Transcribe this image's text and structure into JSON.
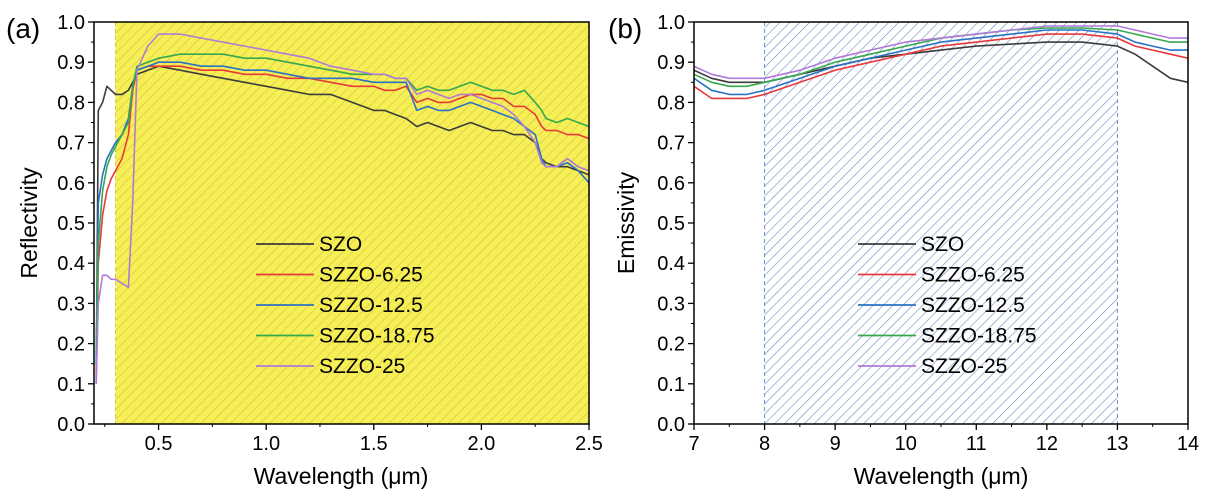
{
  "figure": {
    "series_names": [
      "SZO",
      "SZZO-6.25",
      "SZZO-12.5",
      "SZZO-18.75",
      "SZZO-25"
    ],
    "series_colors": [
      "#3c3c3c",
      "#e8393b",
      "#2a72c6",
      "#35a84e",
      "#b07ad8"
    ]
  },
  "chart_data": [
    {
      "panel_label": "(a)",
      "type": "line",
      "xlabel": "Wavelength (μm)",
      "ylabel": "Reflectivity",
      "xlim": [
        0.2,
        2.5
      ],
      "ylim": [
        0.0,
        1.0
      ],
      "xticks": [
        0.5,
        1.0,
        1.5,
        2.0,
        2.5
      ],
      "xtick_labels": [
        "0.5",
        "1.0",
        "1.5",
        "2.0",
        "2.5"
      ],
      "yticks": [
        0.0,
        0.1,
        0.2,
        0.3,
        0.4,
        0.5,
        0.6,
        0.7,
        0.8,
        0.9,
        1.0
      ],
      "ytick_labels": [
        "0.0",
        "0.1",
        "0.2",
        "0.3",
        "0.4",
        "0.5",
        "0.6",
        "0.7",
        "0.8",
        "0.9",
        "1.0"
      ],
      "shaded_region": {
        "x_range": [
          0.3,
          2.5
        ],
        "color": "#f5f055",
        "hatch_color": "#e2c24a"
      },
      "legend_position": "center",
      "series": [
        {
          "name": "SZO",
          "x": [
            0.21,
            0.22,
            0.24,
            0.26,
            0.28,
            0.3,
            0.33,
            0.36,
            0.38,
            0.4,
            0.45,
            0.5,
            0.6,
            0.7,
            0.8,
            0.9,
            1.0,
            1.1,
            1.2,
            1.3,
            1.4,
            1.5,
            1.55,
            1.6,
            1.65,
            1.7,
            1.75,
            1.8,
            1.85,
            1.9,
            1.95,
            2.0,
            2.05,
            2.1,
            2.15,
            2.2,
            2.25,
            2.28,
            2.3,
            2.35,
            2.4,
            2.45,
            2.5
          ],
          "y": [
            0.1,
            0.78,
            0.8,
            0.84,
            0.83,
            0.82,
            0.82,
            0.83,
            0.85,
            0.87,
            0.88,
            0.89,
            0.88,
            0.87,
            0.86,
            0.85,
            0.84,
            0.83,
            0.82,
            0.82,
            0.8,
            0.78,
            0.78,
            0.77,
            0.76,
            0.74,
            0.75,
            0.74,
            0.73,
            0.74,
            0.75,
            0.74,
            0.73,
            0.73,
            0.72,
            0.72,
            0.7,
            0.66,
            0.65,
            0.64,
            0.64,
            0.63,
            0.62
          ]
        },
        {
          "name": "SZZO-6.25",
          "x": [
            0.21,
            0.22,
            0.24,
            0.26,
            0.28,
            0.3,
            0.33,
            0.36,
            0.38,
            0.4,
            0.45,
            0.5,
            0.6,
            0.7,
            0.8,
            0.9,
            1.0,
            1.1,
            1.2,
            1.3,
            1.4,
            1.5,
            1.55,
            1.6,
            1.65,
            1.7,
            1.75,
            1.8,
            1.85,
            1.9,
            1.95,
            2.0,
            2.05,
            2.1,
            2.15,
            2.2,
            2.25,
            2.28,
            2.3,
            2.35,
            2.4,
            2.45,
            2.5
          ],
          "y": [
            0.12,
            0.4,
            0.52,
            0.58,
            0.61,
            0.63,
            0.66,
            0.72,
            0.83,
            0.88,
            0.89,
            0.89,
            0.89,
            0.88,
            0.88,
            0.87,
            0.87,
            0.86,
            0.86,
            0.85,
            0.84,
            0.84,
            0.83,
            0.83,
            0.84,
            0.8,
            0.81,
            0.8,
            0.8,
            0.81,
            0.82,
            0.82,
            0.81,
            0.81,
            0.79,
            0.79,
            0.77,
            0.74,
            0.73,
            0.73,
            0.72,
            0.72,
            0.71
          ]
        },
        {
          "name": "SZZO-12.5",
          "x": [
            0.21,
            0.22,
            0.24,
            0.26,
            0.28,
            0.3,
            0.33,
            0.36,
            0.38,
            0.4,
            0.45,
            0.5,
            0.6,
            0.7,
            0.8,
            0.9,
            1.0,
            1.1,
            1.2,
            1.3,
            1.4,
            1.5,
            1.55,
            1.6,
            1.65,
            1.7,
            1.75,
            1.8,
            1.85,
            1.9,
            1.95,
            2.0,
            2.05,
            2.1,
            2.15,
            2.2,
            2.25,
            2.28,
            2.3,
            2.35,
            2.4,
            2.45,
            2.5
          ],
          "y": [
            0.15,
            0.55,
            0.62,
            0.66,
            0.68,
            0.7,
            0.72,
            0.76,
            0.84,
            0.88,
            0.89,
            0.9,
            0.9,
            0.89,
            0.89,
            0.88,
            0.88,
            0.87,
            0.86,
            0.86,
            0.86,
            0.85,
            0.85,
            0.85,
            0.85,
            0.78,
            0.79,
            0.78,
            0.78,
            0.79,
            0.8,
            0.79,
            0.78,
            0.77,
            0.76,
            0.74,
            0.72,
            0.66,
            0.64,
            0.64,
            0.65,
            0.63,
            0.6
          ]
        },
        {
          "name": "SZZO-18.75",
          "x": [
            0.21,
            0.22,
            0.24,
            0.26,
            0.28,
            0.3,
            0.33,
            0.36,
            0.38,
            0.4,
            0.45,
            0.5,
            0.6,
            0.7,
            0.8,
            0.9,
            1.0,
            1.1,
            1.2,
            1.3,
            1.4,
            1.5,
            1.55,
            1.6,
            1.65,
            1.7,
            1.75,
            1.8,
            1.85,
            1.9,
            1.95,
            2.0,
            2.05,
            2.1,
            2.15,
            2.2,
            2.25,
            2.28,
            2.3,
            2.35,
            2.4,
            2.45,
            2.5
          ],
          "y": [
            0.18,
            0.45,
            0.58,
            0.64,
            0.67,
            0.69,
            0.72,
            0.75,
            0.84,
            0.89,
            0.9,
            0.91,
            0.92,
            0.92,
            0.92,
            0.91,
            0.91,
            0.9,
            0.89,
            0.88,
            0.87,
            0.87,
            0.87,
            0.86,
            0.86,
            0.83,
            0.84,
            0.83,
            0.83,
            0.84,
            0.85,
            0.84,
            0.83,
            0.83,
            0.82,
            0.83,
            0.8,
            0.78,
            0.76,
            0.75,
            0.76,
            0.75,
            0.74
          ]
        },
        {
          "name": "SZZO-25",
          "x": [
            0.21,
            0.22,
            0.24,
            0.26,
            0.28,
            0.3,
            0.33,
            0.36,
            0.38,
            0.4,
            0.45,
            0.5,
            0.6,
            0.7,
            0.8,
            0.9,
            1.0,
            1.1,
            1.2,
            1.3,
            1.4,
            1.5,
            1.55,
            1.6,
            1.65,
            1.7,
            1.75,
            1.8,
            1.85,
            1.9,
            1.95,
            2.0,
            2.05,
            2.1,
            2.15,
            2.2,
            2.25,
            2.28,
            2.3,
            2.35,
            2.4,
            2.45,
            2.5
          ],
          "y": [
            0.1,
            0.3,
            0.37,
            0.37,
            0.36,
            0.36,
            0.35,
            0.34,
            0.55,
            0.88,
            0.94,
            0.97,
            0.97,
            0.96,
            0.95,
            0.94,
            0.93,
            0.92,
            0.91,
            0.89,
            0.88,
            0.87,
            0.87,
            0.86,
            0.86,
            0.82,
            0.83,
            0.82,
            0.81,
            0.82,
            0.82,
            0.81,
            0.8,
            0.79,
            0.77,
            0.74,
            0.7,
            0.65,
            0.64,
            0.64,
            0.66,
            0.64,
            0.63
          ]
        }
      ]
    },
    {
      "panel_label": "(b)",
      "type": "line",
      "xlabel": "Wavelength (μm)",
      "ylabel": "Emissivity",
      "xlim": [
        7,
        14
      ],
      "ylim": [
        0.0,
        1.0
      ],
      "xticks": [
        7,
        8,
        9,
        10,
        11,
        12,
        13,
        14
      ],
      "xtick_labels": [
        "7",
        "8",
        "9",
        "10",
        "11",
        "12",
        "13",
        "14"
      ],
      "yticks": [
        0.0,
        0.1,
        0.2,
        0.3,
        0.4,
        0.5,
        0.6,
        0.7,
        0.8,
        0.9,
        1.0
      ],
      "ytick_labels": [
        "0.0",
        "0.1",
        "0.2",
        "0.3",
        "0.4",
        "0.5",
        "0.6",
        "0.7",
        "0.8",
        "0.9",
        "1.0"
      ],
      "shaded_region": {
        "x_range": [
          8,
          13
        ],
        "color": "#c6d6ee",
        "hatch_color": "#6a8fc4"
      },
      "legend_position": "center",
      "series": [
        {
          "name": "SZO",
          "x": [
            7.0,
            7.25,
            7.5,
            7.75,
            8.0,
            8.5,
            9.0,
            9.5,
            10.0,
            10.5,
            11.0,
            11.5,
            12.0,
            12.5,
            13.0,
            13.25,
            13.5,
            13.75,
            14.0
          ],
          "y": [
            0.88,
            0.86,
            0.85,
            0.85,
            0.85,
            0.87,
            0.89,
            0.91,
            0.92,
            0.93,
            0.94,
            0.945,
            0.95,
            0.95,
            0.94,
            0.92,
            0.89,
            0.86,
            0.85
          ]
        },
        {
          "name": "SZZO-6.25",
          "x": [
            7.0,
            7.25,
            7.5,
            7.75,
            8.0,
            8.5,
            9.0,
            9.5,
            10.0,
            10.5,
            11.0,
            11.5,
            12.0,
            12.5,
            13.0,
            13.25,
            13.5,
            13.75,
            14.0
          ],
          "y": [
            0.84,
            0.81,
            0.81,
            0.81,
            0.82,
            0.85,
            0.88,
            0.9,
            0.92,
            0.94,
            0.95,
            0.96,
            0.97,
            0.97,
            0.96,
            0.94,
            0.93,
            0.92,
            0.91
          ]
        },
        {
          "name": "SZZO-12.5",
          "x": [
            7.0,
            7.25,
            7.5,
            7.75,
            8.0,
            8.5,
            9.0,
            9.5,
            10.0,
            10.5,
            11.0,
            11.5,
            12.0,
            12.5,
            13.0,
            13.25,
            13.5,
            13.75,
            14.0
          ],
          "y": [
            0.86,
            0.83,
            0.82,
            0.82,
            0.83,
            0.86,
            0.89,
            0.91,
            0.93,
            0.95,
            0.96,
            0.97,
            0.98,
            0.98,
            0.97,
            0.95,
            0.94,
            0.93,
            0.93
          ]
        },
        {
          "name": "SZZO-18.75",
          "x": [
            7.0,
            7.25,
            7.5,
            7.75,
            8.0,
            8.5,
            9.0,
            9.5,
            10.0,
            10.5,
            11.0,
            11.5,
            12.0,
            12.5,
            13.0,
            13.25,
            13.5,
            13.75,
            14.0
          ],
          "y": [
            0.87,
            0.85,
            0.84,
            0.84,
            0.85,
            0.87,
            0.9,
            0.92,
            0.94,
            0.96,
            0.97,
            0.98,
            0.985,
            0.985,
            0.98,
            0.97,
            0.96,
            0.95,
            0.95
          ]
        },
        {
          "name": "SZZO-25",
          "x": [
            7.0,
            7.25,
            7.5,
            7.75,
            8.0,
            8.5,
            9.0,
            9.5,
            10.0,
            10.5,
            11.0,
            11.5,
            12.0,
            12.5,
            13.0,
            13.25,
            13.5,
            13.75,
            14.0
          ],
          "y": [
            0.89,
            0.87,
            0.86,
            0.86,
            0.86,
            0.88,
            0.91,
            0.93,
            0.95,
            0.96,
            0.97,
            0.98,
            0.99,
            0.99,
            0.99,
            0.98,
            0.97,
            0.96,
            0.96
          ]
        }
      ]
    }
  ]
}
